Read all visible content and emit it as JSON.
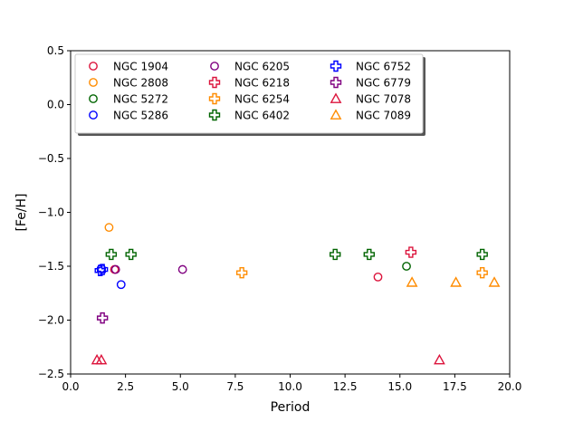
{
  "chart_data": {
    "type": "scatter",
    "title": "",
    "xlabel": "Period",
    "ylabel": "[Fe/H]",
    "xlim": [
      0.0,
      20.0
    ],
    "ylim": [
      -2.5,
      0.5
    ],
    "xticks": [
      "0.0",
      "2.5",
      "5.0",
      "7.5",
      "10.0",
      "12.5",
      "15.0",
      "17.5",
      "20.0"
    ],
    "yticks": [
      "0.5",
      "0.0",
      "−0.5",
      "−1.0",
      "−1.5",
      "−2.0",
      "−2.5"
    ],
    "xtick_values": [
      0,
      2.5,
      5,
      7.5,
      10,
      12.5,
      15,
      17.5,
      20
    ],
    "ytick_values": [
      0.5,
      0,
      -0.5,
      -1.0,
      -1.5,
      -2.0,
      -2.5
    ],
    "grid": false,
    "legend_position": "top-left",
    "series": [
      {
        "name": "NGC 1904",
        "marker": "circle",
        "color": "#dc143c",
        "points": [
          [
            2.0,
            -1.53
          ],
          [
            14.0,
            -1.6
          ]
        ]
      },
      {
        "name": "NGC 2808",
        "marker": "circle",
        "color": "#ff8c00",
        "points": [
          [
            1.75,
            -1.14
          ]
        ]
      },
      {
        "name": "NGC 5272",
        "marker": "circle",
        "color": "#006400",
        "points": [
          [
            15.3,
            -1.5
          ]
        ]
      },
      {
        "name": "NGC 5286",
        "marker": "circle",
        "color": "#0000ff",
        "points": [
          [
            1.4,
            -1.52
          ],
          [
            2.3,
            -1.67
          ]
        ]
      },
      {
        "name": "NGC 6205",
        "marker": "circle",
        "color": "#800080",
        "points": [
          [
            2.05,
            -1.53
          ],
          [
            5.1,
            -1.53
          ]
        ]
      },
      {
        "name": "NGC 6218",
        "marker": "plus",
        "color": "#dc143c",
        "points": [
          [
            15.5,
            -1.37
          ]
        ]
      },
      {
        "name": "NGC 6254",
        "marker": "plus",
        "color": "#ff8c00",
        "points": [
          [
            7.8,
            -1.56
          ],
          [
            18.75,
            -1.56
          ]
        ]
      },
      {
        "name": "NGC 6402",
        "marker": "plus",
        "color": "#006400",
        "points": [
          [
            1.85,
            -1.39
          ],
          [
            2.75,
            -1.39
          ],
          [
            12.05,
            -1.39
          ],
          [
            13.6,
            -1.39
          ],
          [
            18.75,
            -1.39
          ]
        ]
      },
      {
        "name": "NGC 6752",
        "marker": "plus",
        "color": "#0000ff",
        "points": [
          [
            1.35,
            -1.54
          ],
          [
            1.45,
            -1.53
          ]
        ]
      },
      {
        "name": "NGC 6779",
        "marker": "plus",
        "color": "#800080",
        "points": [
          [
            1.45,
            -1.98
          ]
        ]
      },
      {
        "name": "NGC 7078",
        "marker": "triangle",
        "color": "#dc143c",
        "points": [
          [
            1.2,
            -2.37
          ],
          [
            1.4,
            -2.37
          ],
          [
            16.8,
            -2.37
          ]
        ]
      },
      {
        "name": "NGC 7089",
        "marker": "triangle",
        "color": "#ff8c00",
        "points": [
          [
            15.55,
            -1.65
          ],
          [
            17.55,
            -1.65
          ],
          [
            19.3,
            -1.65
          ]
        ]
      }
    ]
  }
}
